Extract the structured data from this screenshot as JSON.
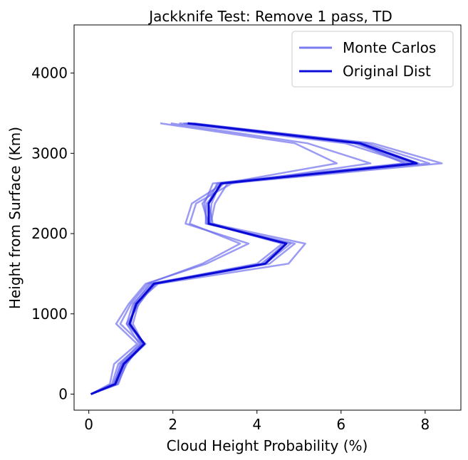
{
  "chart_data": {
    "type": "line",
    "title": "Jackknife Test: Remove 1 pass, TD",
    "xlabel": "Cloud Height Probability (%)",
    "ylabel": "Height from Surface (Km)",
    "xlim": [
      -0.35,
      8.85
    ],
    "ylim": [
      -200,
      4600
    ],
    "xticks": [
      0,
      2,
      4,
      6,
      8
    ],
    "yticks": [
      0,
      1000,
      2000,
      3000,
      4000
    ],
    "grid": false,
    "legend_position": "top-right",
    "legend": [
      {
        "label": "Monte Carlos",
        "color": "#7b7bf0"
      },
      {
        "label": "Original Dist",
        "color": "#0d0dd8"
      }
    ],
    "colors": {
      "monte_carlo": "#6666ee",
      "original": "#0a0ad6"
    },
    "y": [
      0,
      125,
      375,
      625,
      875,
      1125,
      1375,
      1625,
      1875,
      2125,
      2375,
      2625,
      2875,
      3125,
      3375
    ],
    "series": [
      {
        "values": [
          0.05,
          0.5,
          0.6,
          1.15,
          0.65,
          0.95,
          1.35,
          2.8,
          3.8,
          2.3,
          2.45,
          3.2,
          5.9,
          4.9,
          1.7
        ]
      },
      {
        "values": [
          0.05,
          0.55,
          0.7,
          1.25,
          0.75,
          1.0,
          1.4,
          2.7,
          3.6,
          2.4,
          2.55,
          3.4,
          6.7,
          5.2,
          1.95
        ]
      },
      {
        "values": [
          0.05,
          0.6,
          0.75,
          1.2,
          0.9,
          1.05,
          1.5,
          4.0,
          4.6,
          2.85,
          2.7,
          3.1,
          7.6,
          6.1,
          2.15
        ]
      },
      {
        "values": [
          0.05,
          0.62,
          0.8,
          1.3,
          0.95,
          1.15,
          1.6,
          4.1,
          4.7,
          2.95,
          2.85,
          3.05,
          7.7,
          6.3,
          2.25
        ]
      },
      {
        "values": [
          0.05,
          0.65,
          0.85,
          1.35,
          0.9,
          1.2,
          1.55,
          4.2,
          4.8,
          2.8,
          2.75,
          2.95,
          7.5,
          6.4,
          2.3
        ]
      },
      {
        "values": [
          0.05,
          0.68,
          0.9,
          1.25,
          1.0,
          1.1,
          1.65,
          4.75,
          5.15,
          2.9,
          3.0,
          3.3,
          8.4,
          6.75,
          2.45
        ]
      },
      {
        "values": [
          0.05,
          0.7,
          0.88,
          1.3,
          1.05,
          1.18,
          1.58,
          4.3,
          4.9,
          2.78,
          2.8,
          3.2,
          8.1,
          6.6,
          2.5
        ]
      },
      {
        "values": [
          0.05,
          0.58,
          0.78,
          1.28,
          0.98,
          1.08,
          1.45,
          4.15,
          4.65,
          2.88,
          2.92,
          3.12,
          7.85,
          6.5,
          2.4
        ]
      },
      {
        "name": "Original Dist",
        "original": true,
        "values": [
          0.05,
          0.63,
          0.83,
          1.32,
          0.97,
          1.13,
          1.55,
          4.2,
          4.7,
          2.85,
          2.85,
          3.15,
          7.8,
          6.45,
          2.35
        ]
      }
    ]
  }
}
